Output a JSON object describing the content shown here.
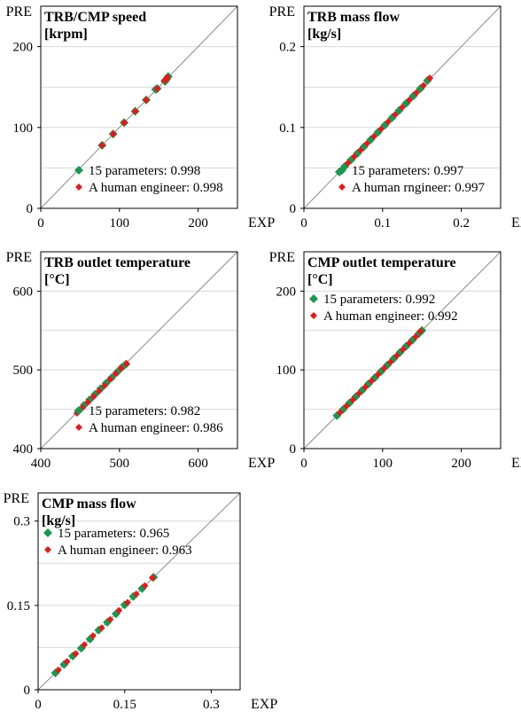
{
  "chart_data": [
    {
      "type": "scatter",
      "title": "TRB/CMP speed",
      "subtitle": "[krpm]",
      "xlabel": "EXP",
      "ylabel": "PRE",
      "xlim": [
        0,
        250
      ],
      "ylim": [
        0,
        250
      ],
      "xticks": [
        "0",
        "100",
        "200"
      ],
      "xtick_values": [
        0,
        100,
        200
      ],
      "yticks": [
        "0",
        "100",
        "200"
      ],
      "ytick_values": [
        0,
        100,
        200
      ],
      "grid": true,
      "diagonal": true,
      "legend_position": "bottom-right",
      "legend": [
        "15 parameters: 0.998",
        "A human engineer: 0.998"
      ],
      "series": [
        {
          "name": "15 parameters: 0.998",
          "color": "#1a9850",
          "marker": "diamond",
          "x": [
            78,
            92,
            106,
            120,
            134,
            148,
            160,
            162,
            158,
            146
          ],
          "y": [
            78,
            92,
            106,
            120,
            134,
            148,
            160,
            163,
            157,
            147
          ]
        },
        {
          "name": "A human engineer: 0.998",
          "color": "#e31a1c",
          "marker": "diamond",
          "x": [
            78,
            92,
            106,
            120,
            134,
            148,
            160,
            161,
            157
          ],
          "y": [
            78,
            92,
            106,
            120,
            134,
            148,
            160,
            162,
            158
          ]
        }
      ]
    },
    {
      "type": "scatter",
      "title": "TRB mass flow",
      "subtitle": "[kg/s]",
      "xlabel": "EXP",
      "ylabel": "PRE",
      "xlim": [
        0,
        0.25
      ],
      "ylim": [
        0,
        0.25
      ],
      "xticks": [
        "0",
        "0.1",
        "0.2"
      ],
      "xtick_values": [
        0,
        0.1,
        0.2
      ],
      "yticks": [
        "0",
        "0.1",
        "0.2"
      ],
      "ytick_values": [
        0,
        0.1,
        0.2
      ],
      "grid": true,
      "diagonal": true,
      "legend_position": "bottom-right",
      "legend": [
        "15 parameters: 0.997",
        "A human rngineer: 0.997"
      ],
      "series": [
        {
          "name": "15 parameters: 0.997",
          "color": "#1a9850",
          "marker": "diamond",
          "x": [
            0.045,
            0.052,
            0.06,
            0.068,
            0.076,
            0.085,
            0.094,
            0.103,
            0.112,
            0.121,
            0.13,
            0.139,
            0.148,
            0.157
          ],
          "y": [
            0.045,
            0.052,
            0.06,
            0.068,
            0.076,
            0.085,
            0.094,
            0.103,
            0.112,
            0.121,
            0.13,
            0.139,
            0.148,
            0.158
          ]
        },
        {
          "name": "A human rngineer: 0.997",
          "color": "#e31a1c",
          "marker": "diamond",
          "x": [
            0.048,
            0.056,
            0.064,
            0.072,
            0.08,
            0.089,
            0.098,
            0.107,
            0.116,
            0.125,
            0.134,
            0.143,
            0.152,
            0.16
          ],
          "y": [
            0.048,
            0.056,
            0.064,
            0.072,
            0.08,
            0.089,
            0.098,
            0.107,
            0.116,
            0.125,
            0.134,
            0.143,
            0.152,
            0.161
          ]
        }
      ]
    },
    {
      "type": "scatter",
      "title": "TRB outlet temperature",
      "subtitle": "[°C]",
      "xlabel": "EXP",
      "ylabel": "PRE",
      "xlim": [
        400,
        650
      ],
      "ylim": [
        400,
        650
      ],
      "xticks": [
        "400",
        "500",
        "600"
      ],
      "xtick_values": [
        400,
        500,
        600
      ],
      "yticks": [
        "400",
        "500",
        "600"
      ],
      "ytick_values": [
        400,
        500,
        600
      ],
      "grid": true,
      "diagonal": true,
      "legend_position": "bottom-right",
      "legend": [
        "15 parameters: 0.982",
        "A human engineer: 0.986"
      ],
      "series": [
        {
          "name": "15 parameters: 0.982",
          "color": "#1a9850",
          "marker": "diamond",
          "x": [
            448,
            455,
            462,
            469,
            476,
            483,
            490,
            497,
            503,
            508
          ],
          "y": [
            448,
            455,
            462,
            469,
            476,
            483,
            490,
            497,
            503,
            507
          ]
        },
        {
          "name": "A human engineer: 0.986",
          "color": "#e31a1c",
          "marker": "diamond",
          "x": [
            446,
            453,
            460,
            467,
            474,
            481,
            488,
            495,
            502,
            509
          ],
          "y": [
            445,
            452,
            459,
            466,
            473,
            480,
            488,
            495,
            502,
            508
          ]
        }
      ]
    },
    {
      "type": "scatter",
      "title": "CMP outlet temperature",
      "subtitle": "[°C]",
      "xlabel": "EXP",
      "ylabel": "PRE",
      "xlim": [
        0,
        250
      ],
      "ylim": [
        0,
        250
      ],
      "xticks": [
        "0",
        "100",
        "200"
      ],
      "xtick_values": [
        0,
        100,
        200
      ],
      "yticks": [
        "0",
        "100",
        "200"
      ],
      "ytick_values": [
        0,
        100,
        200
      ],
      "grid": true,
      "diagonal": true,
      "legend_position": "top-left",
      "legend": [
        "15 parameters: 0.992",
        "A human engineer: 0.992"
      ],
      "series": [
        {
          "name": "15 parameters: 0.992",
          "color": "#1a9850",
          "marker": "diamond",
          "x": [
            42,
            50,
            58,
            66,
            74,
            82,
            90,
            98,
            106,
            114,
            122,
            130,
            138,
            146,
            150
          ],
          "y": [
            42,
            50,
            58,
            66,
            74,
            82,
            90,
            98,
            106,
            114,
            122,
            130,
            138,
            146,
            150
          ]
        },
        {
          "name": "A human engineer: 0.992",
          "color": "#e31a1c",
          "marker": "diamond",
          "x": [
            46,
            54,
            62,
            70,
            78,
            86,
            94,
            102,
            110,
            118,
            126,
            134,
            142,
            148
          ],
          "y": [
            46,
            54,
            62,
            70,
            78,
            86,
            94,
            102,
            110,
            118,
            126,
            134,
            142,
            149
          ]
        }
      ]
    },
    {
      "type": "scatter",
      "title": "CMP mass flow",
      "subtitle": "[kg/s]",
      "xlabel": "EXP",
      "ylabel": "PRE",
      "xlim": [
        0,
        0.35
      ],
      "ylim": [
        0,
        0.35
      ],
      "xticks": [
        "0",
        "0.15",
        "0.3"
      ],
      "xtick_values": [
        0,
        0.15,
        0.3
      ],
      "yticks": [
        "0",
        "0.15",
        "0.3"
      ],
      "ytick_values": [
        0,
        0.15,
        0.3
      ],
      "grid": true,
      "diagonal": true,
      "legend_position": "top-left",
      "legend": [
        "15 parameters: 0.965",
        "A human engineer: 0.963"
      ],
      "series": [
        {
          "name": "15 parameters: 0.965",
          "color": "#1a9850",
          "marker": "diamond",
          "x": [
            0.03,
            0.045,
            0.06,
            0.075,
            0.09,
            0.105,
            0.12,
            0.135,
            0.15,
            0.165,
            0.18,
            0.2
          ],
          "y": [
            0.03,
            0.045,
            0.06,
            0.074,
            0.09,
            0.106,
            0.12,
            0.135,
            0.151,
            0.166,
            0.18,
            0.2
          ]
        },
        {
          "name": "A human engineer: 0.963",
          "color": "#e31a1c",
          "marker": "diamond",
          "x": [
            0.035,
            0.05,
            0.065,
            0.08,
            0.095,
            0.11,
            0.125,
            0.14,
            0.155,
            0.17,
            0.185,
            0.198
          ],
          "y": [
            0.035,
            0.05,
            0.064,
            0.08,
            0.096,
            0.11,
            0.125,
            0.141,
            0.155,
            0.17,
            0.185,
            0.199
          ]
        }
      ]
    }
  ]
}
